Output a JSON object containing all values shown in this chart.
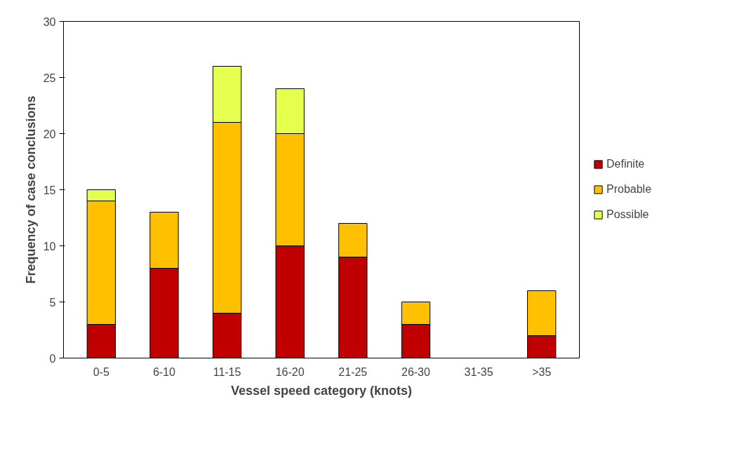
{
  "chart_data": {
    "type": "bar",
    "stacked": true,
    "xlabel": "Vessel speed category (knots)",
    "ylabel": "Frequency of case conclusions",
    "categories": [
      "0-5",
      "6-10",
      "11-15",
      "16-20",
      "21-25",
      "26-30",
      "31-35",
      ">35"
    ],
    "series": [
      {
        "name": "Definite",
        "color": "#c00000",
        "values": [
          3,
          8,
          4,
          10,
          9,
          3,
          null,
          2
        ]
      },
      {
        "name": "Probable",
        "color": "#ffc000",
        "values": [
          11,
          5,
          17,
          10,
          3,
          2,
          null,
          4
        ]
      },
      {
        "name": "Possible",
        "color": "#e5ff4f",
        "values": [
          1,
          null,
          5,
          4,
          null,
          null,
          null,
          null
        ]
      }
    ],
    "ylim": [
      0,
      30
    ],
    "yticks": [
      0,
      5,
      10,
      15,
      20,
      25,
      30
    ],
    "grid": false,
    "legend": "right"
  }
}
